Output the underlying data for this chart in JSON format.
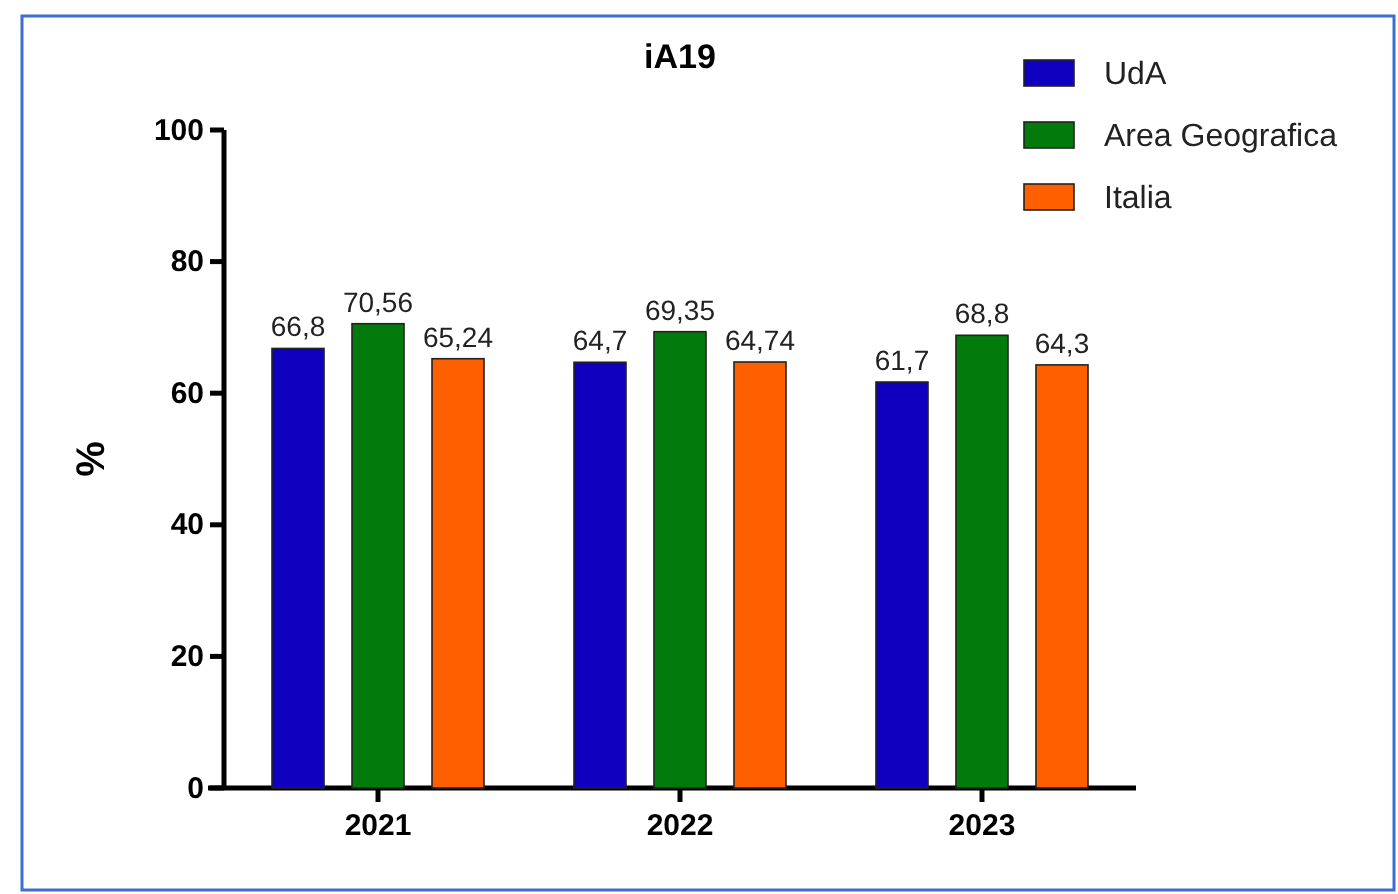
{
  "chart_data": {
    "type": "bar",
    "title": "iA19",
    "ylabel": "%",
    "categories": [
      "2021",
      "2022",
      "2023"
    ],
    "series": [
      {
        "name": "UdA",
        "color": "#0f00c0",
        "values": [
          66.8,
          64.7,
          61.7
        ],
        "value_labels": [
          "66,8",
          "64,7",
          "61,7"
        ]
      },
      {
        "name": "Area Geografica",
        "color": "#037a0c",
        "values": [
          70.56,
          69.35,
          68.8
        ],
        "value_labels": [
          "70,56",
          "69,35",
          "68,8"
        ]
      },
      {
        "name": "Italia",
        "color": "#fe6000",
        "values": [
          65.24,
          64.74,
          64.3
        ],
        "value_labels": [
          "65,24",
          "64,74",
          "64,3"
        ]
      }
    ],
    "ylim": [
      0,
      100
    ],
    "yticks": [
      0,
      20,
      40,
      60,
      80,
      100
    ],
    "grid": false,
    "legend": "top right"
  }
}
